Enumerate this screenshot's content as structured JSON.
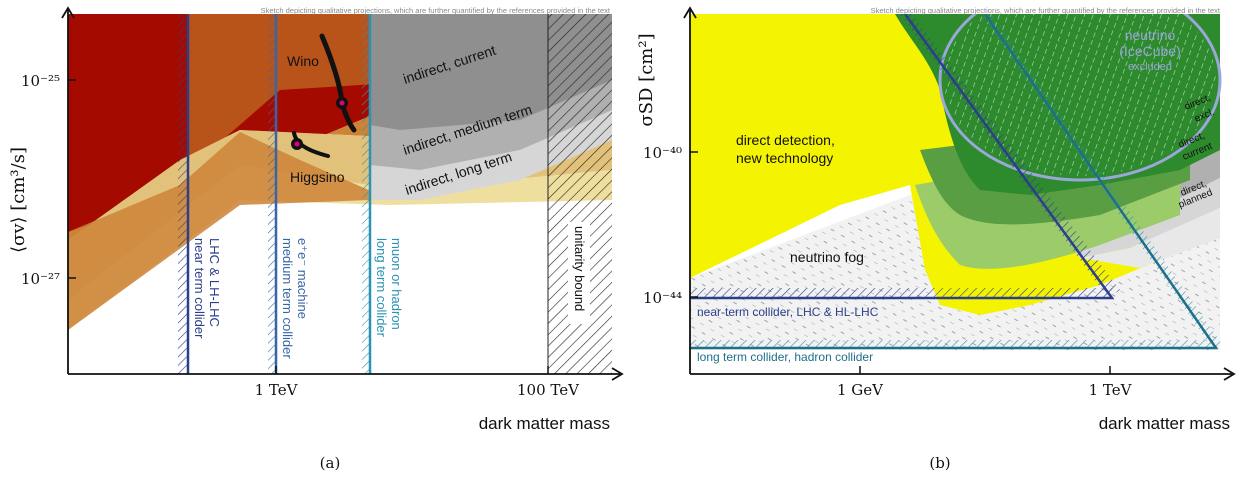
{
  "note": "Sketch depicting qualitative projections, which are further quantified by the references provided in the text",
  "colors": {
    "dark_red": "#a50a00",
    "orange_dark": "#b8531a",
    "orange_mid": "#cc8336",
    "tan": "#e2c27a",
    "tan_light": "#efdf9e",
    "gray_dark": "#8f8f8f",
    "gray_mid": "#b0b0b0",
    "gray_light": "#d6d6d6",
    "gray_lighter": "#e8e8e8",
    "near_blue": "#2c3f8c",
    "medium_blue": "#3766a8",
    "long_cyan": "#2a93b5",
    "yellow": "#f4f400",
    "green_dark": "#2d8a2d",
    "green_mid": "#5a9e44",
    "green_light": "#9ccc6a",
    "lavender": "#9aa7d9",
    "magenta": "#e0007a"
  },
  "panel_a": {
    "caption": "(a)",
    "ylabel": "⟨σv⟩ [cm³/s]",
    "xlabel": "dark matter mass",
    "yticks": [
      "10⁻²⁵",
      "10⁻²⁷"
    ],
    "xticks": [
      "1 TeV",
      "100 TeV"
    ],
    "labels": {
      "wino": "Wino",
      "higgsino": "Higgsino",
      "indirect_current": "indirect, current",
      "indirect_medium": "indirect, medium term",
      "indirect_long": "indirect, long term",
      "unitarity": "unitarity bound",
      "near_collider": [
        "near term collider",
        "LHC & LH-LHC"
      ],
      "medium_collider": [
        "medium term collider",
        "e⁺e⁻ machine"
      ],
      "long_collider": [
        "long term collider",
        "muon or hadron"
      ]
    }
  },
  "panel_b": {
    "caption": "(b)",
    "ylabel": "σSD [cm²]",
    "xlabel": "dark matter mass",
    "yticks": [
      "10⁻⁴⁰",
      "10⁻⁴⁴"
    ],
    "xticks": [
      "1 GeV",
      "1 TeV"
    ],
    "labels": {
      "direct_new_tech": [
        "direct detection,",
        "new technology"
      ],
      "neutrino_fog": "neutrino fog",
      "neutrino_icecube": [
        "neutrino",
        "(IceCube)"
      ],
      "excluded": "excluded",
      "direct_excl": [
        "direct,",
        "excl."
      ],
      "direct_current": [
        "direct,",
        "current"
      ],
      "direct_planned": [
        "direct,",
        "planned"
      ],
      "near_collider": "near-term collider, LHC & HL-LHC",
      "long_collider": "long term collider, hadron collider"
    }
  }
}
